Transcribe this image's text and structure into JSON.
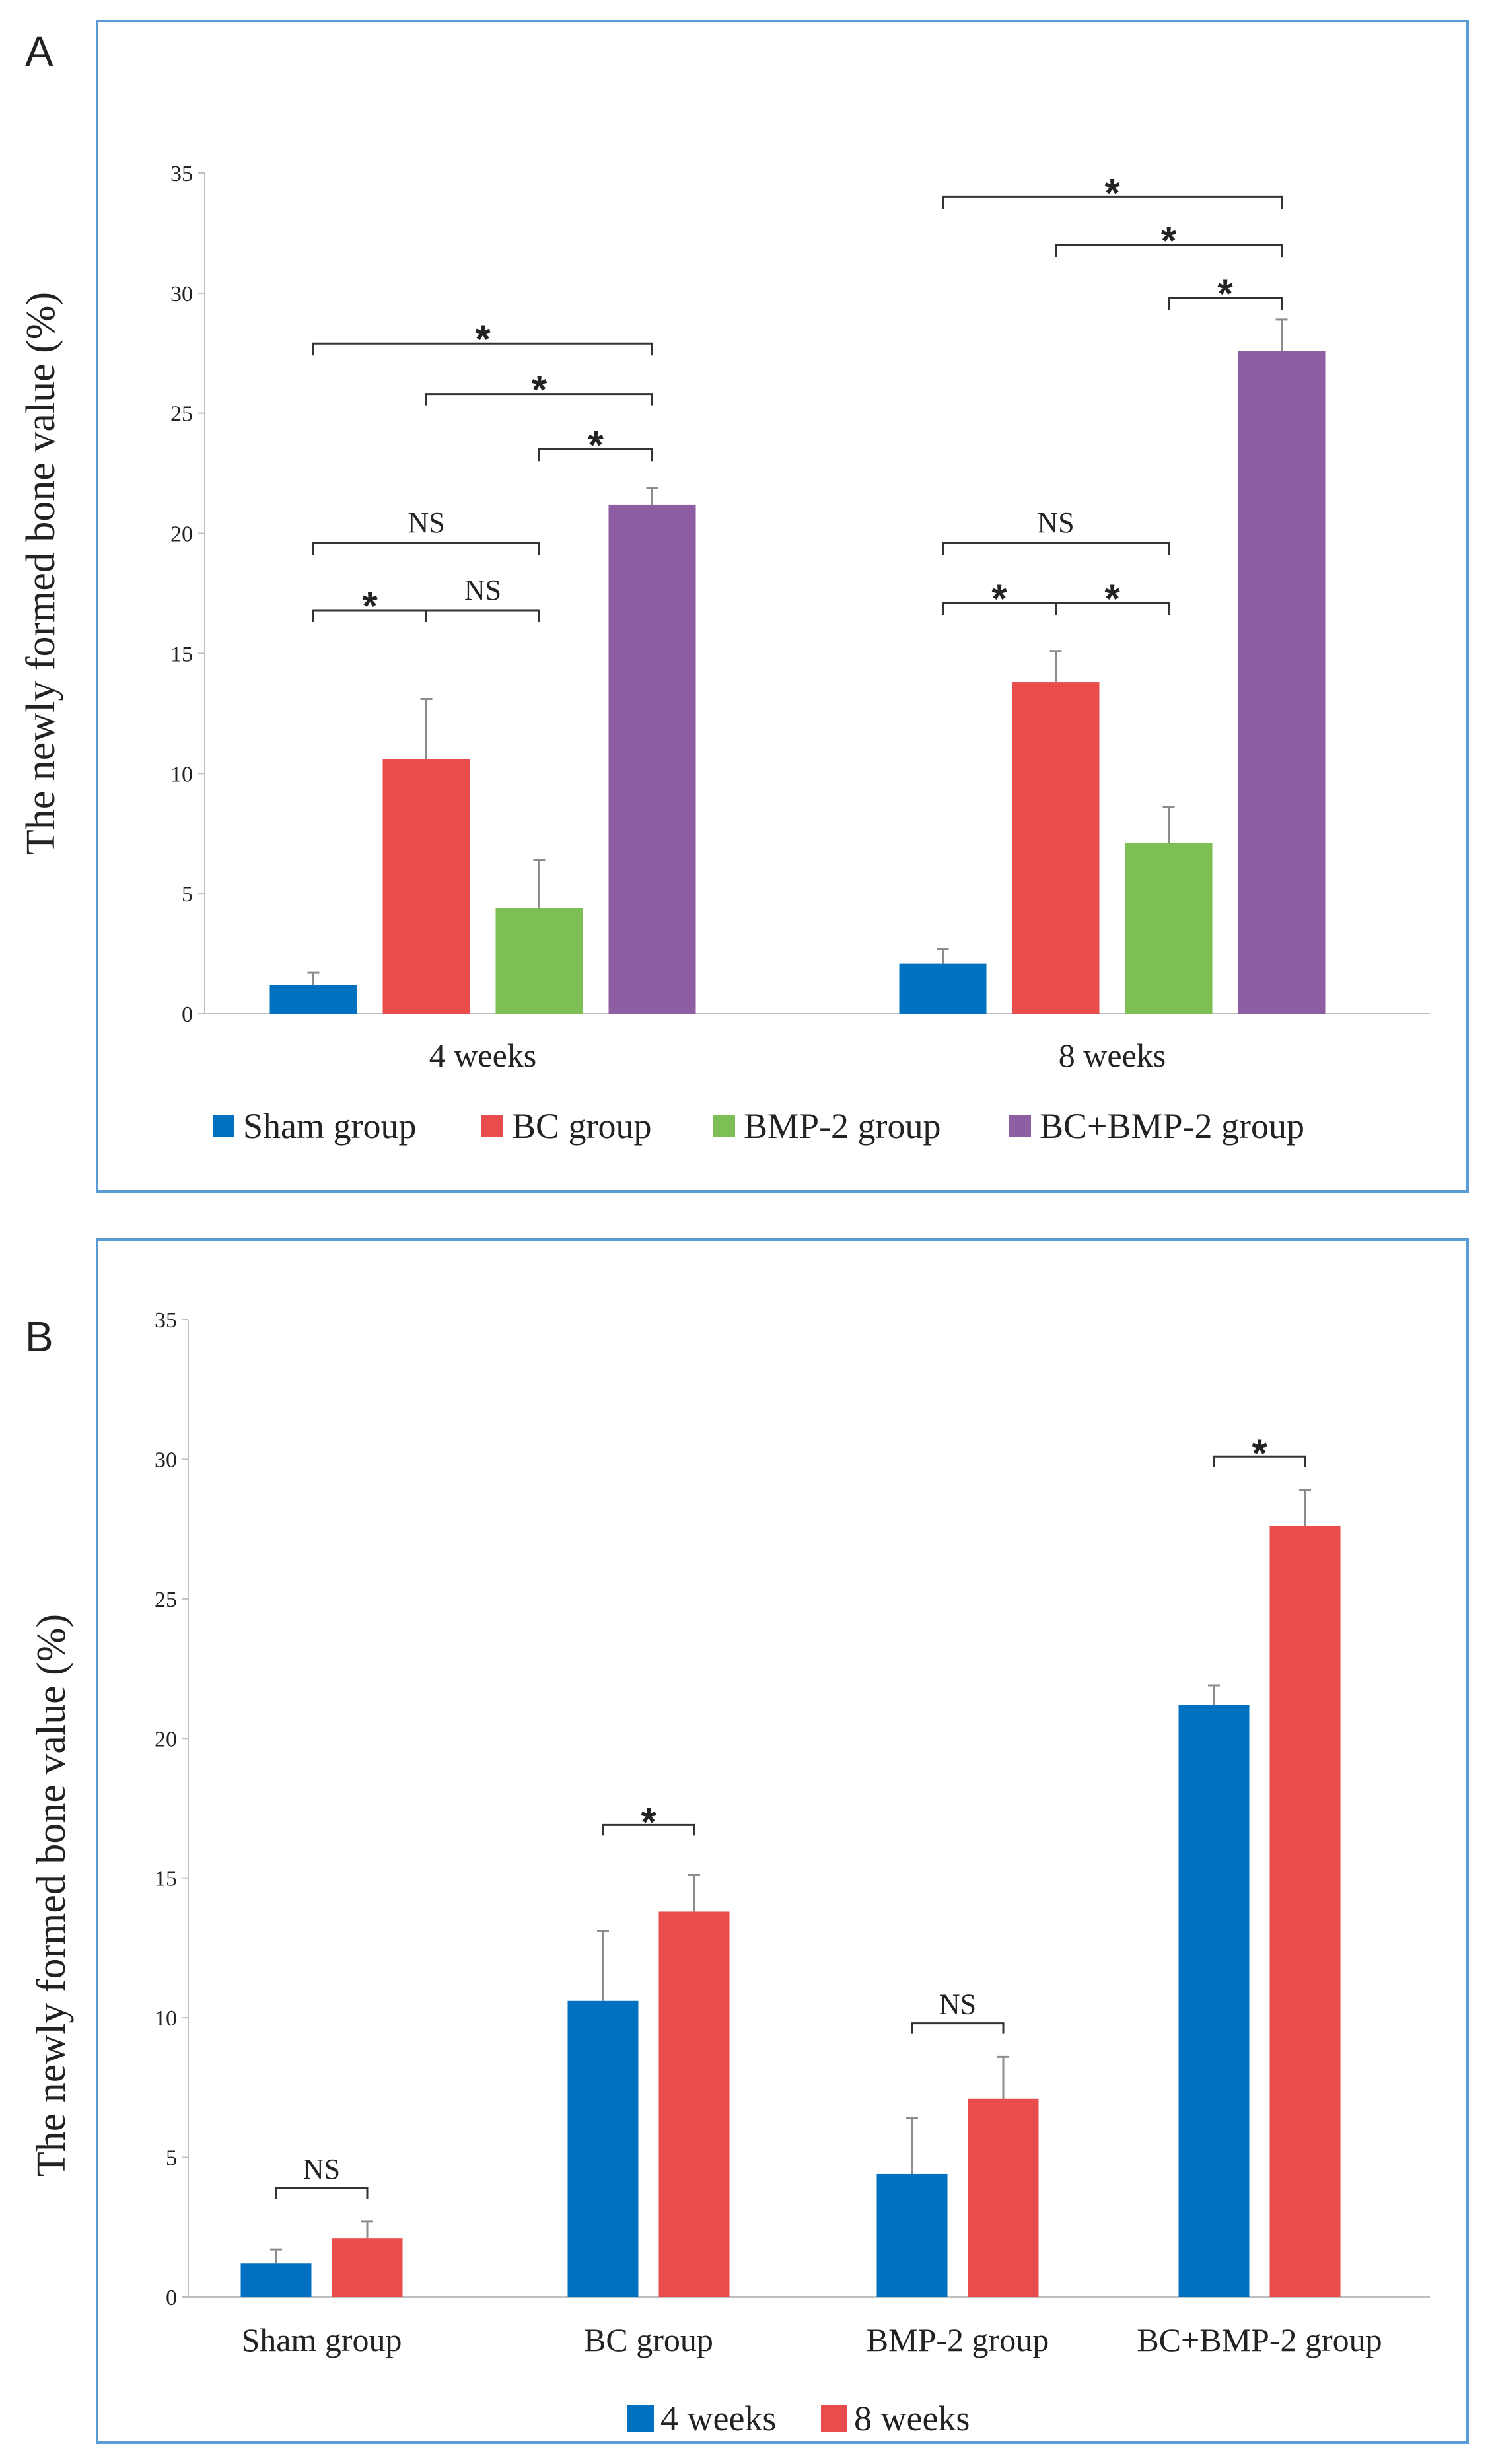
{
  "chart_data": [
    {
      "panel": "A",
      "type": "bar",
      "ylabel": "The newly formed bone value (%)",
      "ylim": [
        0,
        35
      ],
      "yticks": [
        0,
        5,
        10,
        15,
        20,
        25,
        30,
        35
      ],
      "categories": [
        "4 weeks",
        "8 weeks"
      ],
      "legend": [
        "Sham group",
        "BC group",
        "BMP-2 group",
        "BC+BMP-2 group"
      ],
      "legend_position": "bottom",
      "series": [
        {
          "name": "Sham group",
          "color": "#0070C0",
          "values": [
            1.2,
            2.1
          ],
          "errors": [
            0.5,
            0.6
          ]
        },
        {
          "name": "BC group",
          "color": "#E84C4C",
          "values": [
            10.6,
            13.8
          ],
          "errors": [
            2.5,
            1.3
          ]
        },
        {
          "name": "BMP-2 group",
          "color": "#7DBE55",
          "values": [
            4.4,
            7.1
          ],
          "errors": [
            2.0,
            1.5
          ]
        },
        {
          "name": "BC+BMP-2 group",
          "color": "#8E5EA2",
          "values": [
            21.2,
            27.6
          ],
          "errors": [
            0.7,
            1.3
          ]
        }
      ],
      "significance": [
        {
          "group": 0,
          "from": 0,
          "to": 3,
          "y": 27.9,
          "label": "*"
        },
        {
          "group": 0,
          "from": 1,
          "to": 3,
          "y": 25.8,
          "label": "*"
        },
        {
          "group": 0,
          "from": 2,
          "to": 3,
          "y": 23.5,
          "label": "*"
        },
        {
          "group": 0,
          "from": 0,
          "to": 2,
          "y": 19.6,
          "label": "NS"
        },
        {
          "group": 0,
          "from": 0,
          "to": 1,
          "y": 16.8,
          "label": "*"
        },
        {
          "group": 0,
          "from": 1,
          "to": 2,
          "y": 16.8,
          "label": "NS"
        },
        {
          "group": 1,
          "from": 0,
          "to": 3,
          "y": 34.0,
          "label": "*"
        },
        {
          "group": 1,
          "from": 1,
          "to": 3,
          "y": 32.0,
          "label": "*"
        },
        {
          "group": 1,
          "from": 2,
          "to": 3,
          "y": 29.8,
          "label": "*"
        },
        {
          "group": 1,
          "from": 0,
          "to": 2,
          "y": 19.6,
          "label": "NS"
        },
        {
          "group": 1,
          "from": 0,
          "to": 1,
          "y": 17.1,
          "label": "*"
        },
        {
          "group": 1,
          "from": 1,
          "to": 2,
          "y": 17.1,
          "label": "*"
        }
      ]
    },
    {
      "panel": "B",
      "type": "bar",
      "ylabel": "The newly formed bone value (%)",
      "ylim": [
        0,
        35
      ],
      "yticks": [
        0,
        5,
        10,
        15,
        20,
        25,
        30,
        35
      ],
      "categories": [
        "Sham group",
        "BC group",
        "BMP-2 group",
        "BC+BMP-2 group"
      ],
      "legend": [
        "4 weeks",
        "8 weeks"
      ],
      "legend_position": "bottom",
      "series": [
        {
          "name": "4 weeks",
          "color": "#0070C0",
          "values": [
            1.2,
            10.6,
            4.4,
            21.2
          ],
          "errors": [
            0.5,
            2.5,
            2.0,
            0.7
          ]
        },
        {
          "name": "8 weeks",
          "color": "#E84C4C",
          "values": [
            2.1,
            13.8,
            7.1,
            27.6
          ],
          "errors": [
            0.6,
            1.3,
            1.5,
            1.3
          ]
        }
      ],
      "significance": [
        {
          "group": 0,
          "from": 0,
          "to": 1,
          "y": 3.9,
          "label": "NS"
        },
        {
          "group": 1,
          "from": 0,
          "to": 1,
          "y": 16.9,
          "label": "*"
        },
        {
          "group": 2,
          "from": 0,
          "to": 1,
          "y": 9.8,
          "label": "NS"
        },
        {
          "group": 3,
          "from": 0,
          "to": 1,
          "y": 30.1,
          "label": "*"
        }
      ]
    }
  ],
  "colors": {
    "frame": "#5B9BD5",
    "axis": "#BFBFBF"
  },
  "panels": [
    "A",
    "B"
  ]
}
